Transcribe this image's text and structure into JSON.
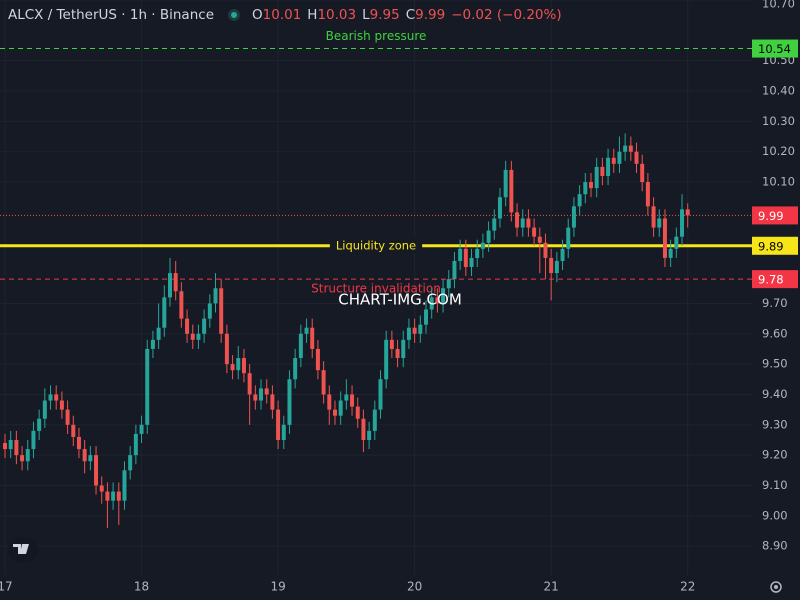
{
  "chart_data": {
    "type": "candlestick",
    "header": {
      "symbol": "ALCX / TetherUS · 1h · Binance",
      "ohlc": [
        {
          "key": "O",
          "value": "10.01"
        },
        {
          "key": "H",
          "value": "10.03"
        },
        {
          "key": "L",
          "value": "9.95"
        },
        {
          "key": "C",
          "value": "9.99"
        }
      ],
      "change": "−0.02 (−0.20%)"
    },
    "watermark": "CHART-IMG.COM",
    "up_color": "#26a69a",
    "down_color": "#ef5350",
    "grid": true,
    "x": [
      0,
      1,
      2,
      3,
      4,
      5,
      6,
      7,
      8,
      9,
      10,
      11,
      12,
      13,
      14,
      15,
      16,
      17,
      18,
      19,
      20,
      21,
      22,
      23,
      24,
      25,
      26,
      27,
      28,
      29,
      30,
      31,
      32,
      33,
      34,
      35,
      36,
      37,
      38,
      39,
      40,
      41,
      42,
      43,
      44,
      45,
      46,
      47,
      48,
      49,
      50,
      51,
      52,
      53,
      54,
      55,
      56,
      57,
      58,
      59,
      60,
      61,
      62,
      63,
      64,
      65,
      66,
      67,
      68,
      69,
      70,
      71,
      72,
      73,
      74,
      75,
      76,
      77,
      78,
      79,
      80,
      81,
      82,
      83,
      84,
      85,
      86,
      87,
      88,
      89,
      90,
      91,
      92,
      93,
      94,
      95,
      96,
      97,
      98,
      99,
      100,
      101,
      102,
      103,
      104,
      105,
      106,
      107,
      108,
      109,
      110,
      111,
      112,
      113,
      114,
      115,
      116,
      117,
      118,
      119,
      120
    ],
    "open": [
      9.24,
      9.22,
      9.25,
      9.2,
      9.18,
      9.22,
      9.28,
      9.32,
      9.38,
      9.4,
      9.38,
      9.35,
      9.3,
      9.26,
      9.22,
      9.18,
      9.2,
      9.1,
      9.08,
      9.05,
      9.08,
      9.05,
      9.15,
      9.2,
      9.27,
      9.3,
      9.55,
      9.58,
      9.62,
      9.72,
      9.8,
      9.74,
      9.65,
      9.6,
      9.58,
      9.6,
      9.65,
      9.7,
      9.75,
      9.6,
      9.5,
      9.48,
      9.52,
      9.47,
      9.4,
      9.38,
      9.42,
      9.4,
      9.35,
      9.25,
      9.3,
      9.45,
      9.52,
      9.6,
      9.62,
      9.55,
      9.48,
      9.4,
      9.35,
      9.33,
      9.38,
      9.4,
      9.36,
      9.32,
      9.25,
      9.28,
      9.35,
      9.45,
      9.58,
      9.55,
      9.52,
      9.58,
      9.62,
      9.6,
      9.63,
      9.68,
      9.72,
      9.7,
      9.75,
      9.78,
      9.84,
      9.88,
      9.82,
      9.85,
      9.88,
      9.9,
      9.94,
      9.98,
      10.05,
      10.14,
      10.0,
      9.95,
      9.98,
      9.95,
      9.92,
      9.9,
      9.85,
      9.8,
      9.84,
      9.88,
      9.95,
      10.02,
      10.06,
      10.1,
      10.08,
      10.15,
      10.12,
      10.18,
      10.16,
      10.2,
      10.22,
      10.2,
      10.16,
      10.1,
      10.02,
      9.95,
      9.98,
      9.85,
      9.88,
      9.92,
      10.01
    ],
    "high": [
      9.27,
      9.28,
      9.28,
      9.23,
      9.25,
      9.31,
      9.35,
      9.42,
      9.43,
      9.43,
      9.41,
      9.38,
      9.33,
      9.29,
      9.25,
      9.23,
      9.23,
      9.13,
      9.11,
      9.11,
      9.11,
      9.18,
      9.23,
      9.3,
      9.33,
      9.58,
      9.61,
      9.7,
      9.76,
      9.85,
      9.84,
      9.77,
      9.68,
      9.63,
      9.63,
      9.68,
      9.73,
      9.8,
      9.78,
      9.63,
      9.53,
      9.56,
      9.55,
      9.5,
      9.43,
      9.45,
      9.45,
      9.43,
      9.38,
      9.33,
      9.48,
      9.55,
      9.63,
      9.65,
      9.65,
      9.58,
      9.51,
      9.43,
      9.38,
      9.41,
      9.45,
      9.43,
      9.39,
      9.35,
      9.31,
      9.38,
      9.48,
      9.61,
      9.61,
      9.58,
      9.61,
      9.65,
      9.65,
      9.66,
      9.71,
      9.75,
      9.75,
      9.78,
      9.81,
      9.87,
      9.91,
      9.91,
      9.88,
      9.91,
      9.93,
      9.97,
      10.01,
      10.08,
      10.17,
      10.17,
      10.03,
      10.01,
      10.01,
      9.98,
      9.95,
      9.93,
      9.88,
      9.87,
      9.91,
      9.98,
      10.05,
      10.09,
      10.13,
      10.13,
      10.18,
      10.18,
      10.21,
      10.21,
      10.25,
      10.26,
      10.25,
      10.23,
      10.19,
      10.13,
      10.05,
      10.01,
      10.01,
      9.91,
      9.95,
      10.06,
      10.03
    ],
    "low": [
      9.19,
      9.19,
      9.17,
      9.15,
      9.15,
      9.19,
      9.25,
      9.29,
      9.35,
      9.35,
      9.32,
      9.27,
      9.23,
      9.19,
      9.14,
      9.15,
      9.07,
      9.04,
      8.96,
      9.02,
      8.97,
      9.02,
      9.12,
      9.17,
      9.24,
      9.27,
      9.52,
      9.55,
      9.59,
      9.69,
      9.71,
      9.62,
      9.57,
      9.55,
      9.55,
      9.57,
      9.62,
      9.67,
      9.57,
      9.47,
      9.45,
      9.45,
      9.44,
      9.3,
      9.35,
      9.35,
      9.37,
      9.32,
      9.22,
      9.22,
      9.27,
      9.42,
      9.49,
      9.57,
      9.52,
      9.45,
      9.37,
      9.3,
      9.3,
      9.3,
      9.35,
      9.33,
      9.29,
      9.21,
      9.22,
      9.25,
      9.32,
      9.42,
      9.52,
      9.49,
      9.49,
      9.55,
      9.57,
      9.57,
      9.6,
      9.65,
      9.67,
      9.67,
      9.72,
      9.75,
      9.81,
      9.79,
      9.79,
      9.82,
      9.85,
      9.87,
      9.91,
      9.95,
      10.02,
      9.97,
      9.92,
      9.92,
      9.92,
      9.89,
      9.8,
      9.78,
      9.71,
      9.77,
      9.81,
      9.85,
      9.92,
      9.99,
      10.03,
      10.05,
      10.05,
      10.09,
      10.09,
      10.13,
      10.13,
      10.17,
      10.17,
      10.13,
      10.07,
      9.99,
      9.92,
      9.92,
      9.82,
      9.82,
      9.85,
      9.89,
      9.95
    ],
    "close": [
      9.22,
      9.25,
      9.2,
      9.18,
      9.22,
      9.28,
      9.32,
      9.38,
      9.4,
      9.38,
      9.35,
      9.3,
      9.26,
      9.22,
      9.18,
      9.2,
      9.1,
      9.08,
      9.05,
      9.08,
      9.05,
      9.15,
      9.2,
      9.27,
      9.3,
      9.55,
      9.58,
      9.62,
      9.72,
      9.8,
      9.74,
      9.65,
      9.6,
      9.58,
      9.6,
      9.65,
      9.7,
      9.75,
      9.6,
      9.5,
      9.48,
      9.52,
      9.47,
      9.4,
      9.38,
      9.42,
      9.4,
      9.35,
      9.25,
      9.3,
      9.45,
      9.52,
      9.6,
      9.62,
      9.55,
      9.48,
      9.4,
      9.35,
      9.33,
      9.38,
      9.4,
      9.36,
      9.32,
      9.25,
      9.28,
      9.35,
      9.45,
      9.58,
      9.55,
      9.52,
      9.58,
      9.62,
      9.6,
      9.63,
      9.68,
      9.72,
      9.7,
      9.75,
      9.78,
      9.84,
      9.88,
      9.82,
      9.85,
      9.88,
      9.9,
      9.94,
      9.98,
      10.05,
      10.14,
      10.0,
      9.95,
      9.98,
      9.95,
      9.92,
      9.9,
      9.85,
      9.8,
      9.84,
      9.88,
      9.95,
      10.02,
      10.06,
      10.1,
      10.08,
      10.15,
      10.12,
      10.18,
      10.16,
      10.2,
      10.22,
      10.2,
      10.16,
      10.1,
      10.02,
      9.95,
      9.98,
      9.85,
      9.88,
      9.92,
      10.01,
      9.99
    ],
    "xlim": [
      -0.88,
      131.3
    ],
    "xticks": [
      {
        "value": 0,
        "label": "17"
      },
      {
        "value": 24,
        "label": "18"
      },
      {
        "value": 48,
        "label": "19"
      },
      {
        "value": 72,
        "label": "20"
      },
      {
        "value": 96,
        "label": "21"
      },
      {
        "value": 120,
        "label": "22"
      }
    ],
    "ylim": [
      8.805,
      10.7
    ],
    "yticks": [
      {
        "value": 10.7,
        "label": "10.70"
      },
      {
        "value": 10.5,
        "label": "10.50"
      },
      {
        "value": 10.4,
        "label": "10.40"
      },
      {
        "value": 10.3,
        "label": "10.30"
      },
      {
        "value": 10.2,
        "label": "10.20"
      },
      {
        "value": 10.1,
        "label": "10.10"
      },
      {
        "value": 9.7,
        "label": "9.70"
      },
      {
        "value": 9.6,
        "label": "9.60"
      },
      {
        "value": 9.5,
        "label": "9.50"
      },
      {
        "value": 9.4,
        "label": "9.40"
      },
      {
        "value": 9.3,
        "label": "9.30"
      },
      {
        "value": 9.2,
        "label": "9.20"
      },
      {
        "value": 9.1,
        "label": "9.10"
      },
      {
        "value": 9.0,
        "label": "9.00"
      },
      {
        "value": 8.9,
        "label": "8.90"
      }
    ],
    "levels": [
      {
        "name": "Bearish pressure",
        "value": 10.54,
        "color": "#3fd13f",
        "style": "dashed"
      },
      {
        "name": "Liquidity zone",
        "value": 9.89,
        "color": "#f7e51a",
        "style": "solid"
      },
      {
        "name": "Structure invalidation",
        "value": 9.78,
        "color": "#f23645",
        "style": "dashed"
      }
    ]
  }
}
